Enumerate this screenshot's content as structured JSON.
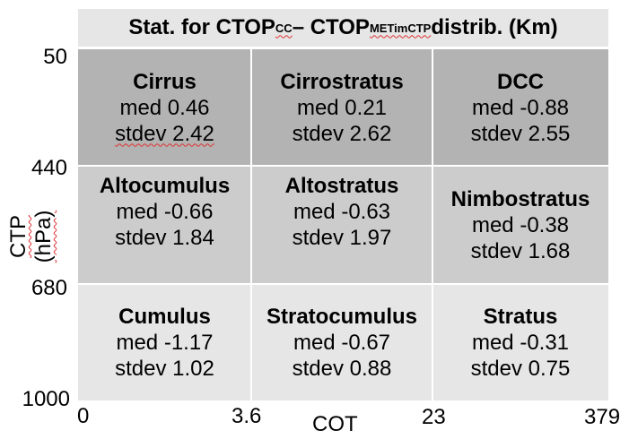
{
  "title": {
    "prefix": "Stat. for CTOP",
    "sub1": "CC",
    "middle": " – CTOP",
    "sub2": "METimCTP",
    "suffix": " distrib. (Km)"
  },
  "axes": {
    "ylabel": "CTP (hPa)",
    "xlabel": "COT",
    "yticks": [
      "50",
      "440",
      "680",
      "1000"
    ],
    "xticks": [
      "0",
      "3.6",
      "23",
      "379"
    ]
  },
  "cells": [
    {
      "name": "Cirrus",
      "med": "med 0.46",
      "stdev": "stdev 2.42"
    },
    {
      "name": "Cirrostratus",
      "med": "med 0.21",
      "stdev": "stdev 2.62"
    },
    {
      "name": "DCC",
      "med": "med -0.88",
      "stdev": "stdev 2.55"
    },
    {
      "name": "Altocumulus",
      "med": "med  -0.66",
      "stdev": "stdev 1.84"
    },
    {
      "name": "Altostratus",
      "med": "med -0.63",
      "stdev": "stdev 1.97"
    },
    {
      "name": "Nimbostratus",
      "med": "med -0.38",
      "stdev": "stdev 1.68"
    },
    {
      "name": "Cumulus",
      "med": "med -1.17",
      "stdev": "stdev 1.02"
    },
    {
      "name": "Stratocumulus",
      "med": "med -0.67",
      "stdev": "stdev 0.88"
    },
    {
      "name": "Stratus",
      "med": "med -0.31",
      "stdev": "stdev 0.75"
    }
  ],
  "colors": {
    "row_top": "#b3b3b3",
    "row_middle": "#cccccc",
    "row_bottom": "#e6e6e6",
    "title_bg": "#e6e6e6",
    "divider": "#ffffff"
  }
}
